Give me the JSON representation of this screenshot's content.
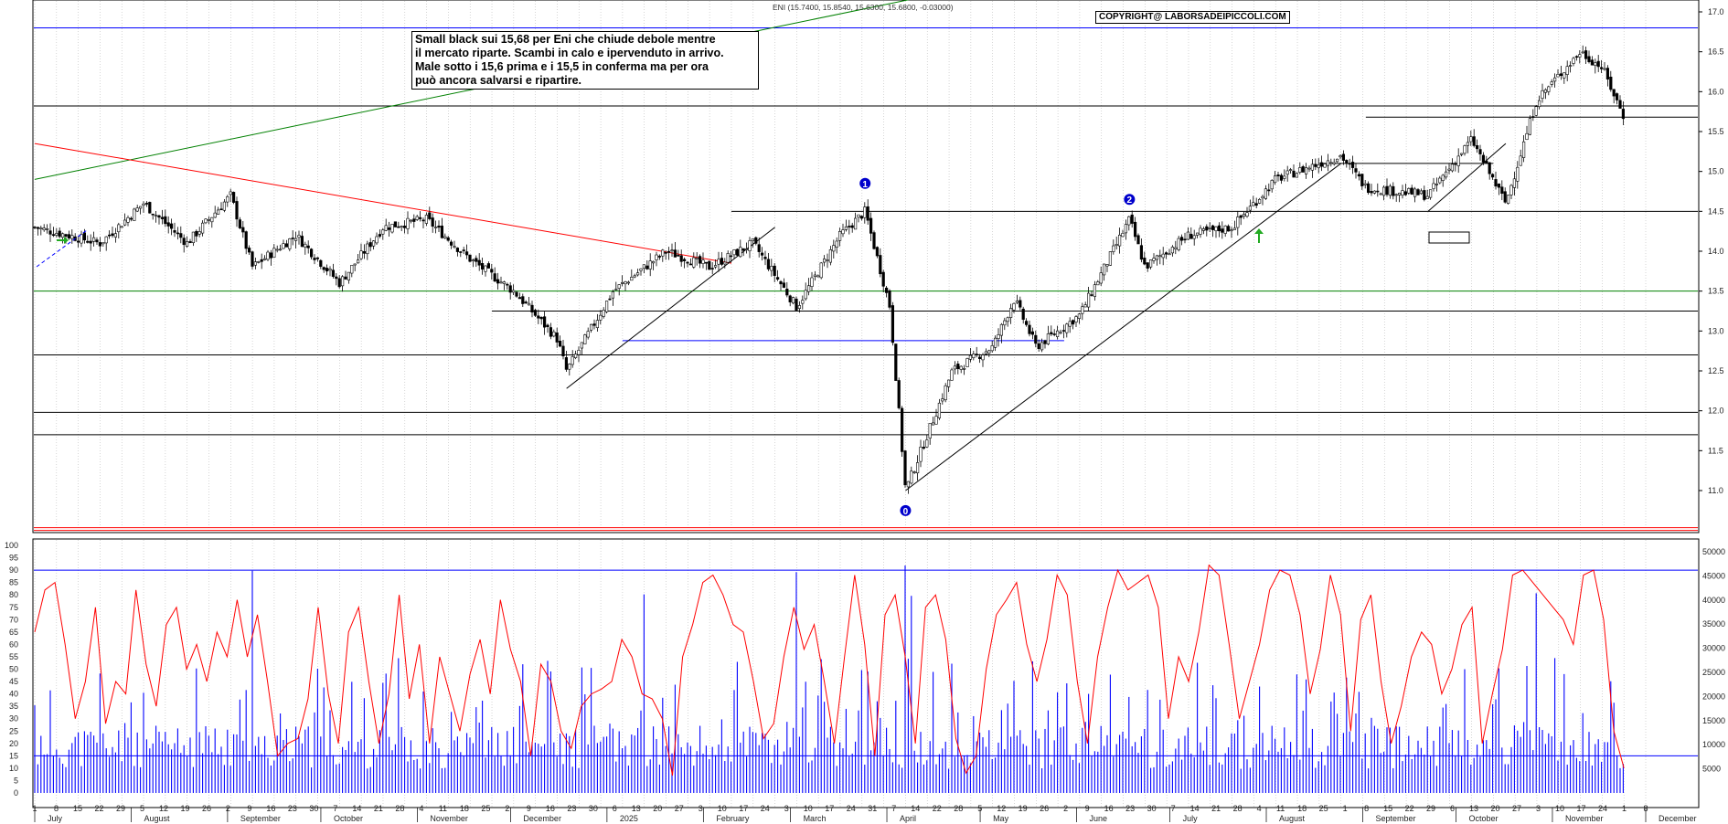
{
  "header": {
    "ticker_readout": "ENI (15.7400, 15.8540, 15.6300, 15.6800, -0.03000)",
    "copyright": "COPYRIGHT@ LABORSADEIPICCOLI.COM"
  },
  "annotation": {
    "lines": [
      "Small black sui 15,68 per Eni che chiude debole mentre",
      "il mercato riparte. Scambi in calo e ipervenduto in arrivo.",
      "Male sotto i 15,6 prima e i 15,5 in conferma ma per ora",
      "può ancora salvarsi e ripartire."
    ]
  },
  "markers": [
    {
      "label": "1",
      "date": "2025-03-25",
      "price": 14.85
    },
    {
      "label": "2",
      "date": "2025-06-18",
      "price": 14.65
    },
    {
      "label": "0",
      "date": "2025-04-07",
      "price": 10.75
    }
  ],
  "colors": {
    "price": "#000000",
    "oscillator": "#ff0000",
    "volume": "#0000ff",
    "trend_up": "#008000",
    "trend_down": "#ff0000",
    "support_green": "#008000",
    "level_blue": "#0000ff"
  },
  "chart_data": [
    {
      "type": "candlestick",
      "title": "",
      "ylim": [
        10.5,
        17.2
      ],
      "y_ticks": [
        "17.0",
        "16.5",
        "16.0",
        "15.5",
        "15.0",
        "14.5",
        "14.0",
        "13.5",
        "13.0",
        "12.5",
        "12.0",
        "11.5",
        "11.0"
      ],
      "grid": "vertical dotted",
      "key_points": [
        {
          "date": "2024-07-01",
          "close": 14.3
        },
        {
          "date": "2024-07-22",
          "close": 14.1
        },
        {
          "date": "2024-08-05",
          "close": 14.6
        },
        {
          "date": "2024-08-19",
          "close": 14.1
        },
        {
          "date": "2024-09-02",
          "close": 14.7
        },
        {
          "date": "2024-09-09",
          "close": 13.8
        },
        {
          "date": "2024-09-23",
          "close": 14.2
        },
        {
          "date": "2024-10-07",
          "close": 13.6
        },
        {
          "date": "2024-10-21",
          "close": 14.3
        },
        {
          "date": "2024-11-04",
          "close": 14.4
        },
        {
          "date": "2024-11-18",
          "close": 13.9
        },
        {
          "date": "2024-12-02",
          "close": 13.5
        },
        {
          "date": "2024-12-16",
          "close": 12.9
        },
        {
          "date": "2024-12-19",
          "close": 12.5
        },
        {
          "date": "2025-01-03",
          "close": 13.5
        },
        {
          "date": "2025-01-20",
          "close": 14.0
        },
        {
          "date": "2025-02-03",
          "close": 13.8
        },
        {
          "date": "2025-02-17",
          "close": 14.1
        },
        {
          "date": "2025-03-03",
          "close": 13.3
        },
        {
          "date": "2025-03-17",
          "close": 14.2
        },
        {
          "date": "2025-03-25",
          "close": 14.5
        },
        {
          "date": "2025-04-02",
          "close": 13.3
        },
        {
          "date": "2025-04-07",
          "close": 11.0
        },
        {
          "date": "2025-04-22",
          "close": 12.5
        },
        {
          "date": "2025-05-05",
          "close": 12.8
        },
        {
          "date": "2025-05-12",
          "close": 13.4
        },
        {
          "date": "2025-05-19",
          "close": 12.8
        },
        {
          "date": "2025-06-02",
          "close": 13.2
        },
        {
          "date": "2025-06-18",
          "close": 14.4
        },
        {
          "date": "2025-06-23",
          "close": 13.8
        },
        {
          "date": "2025-07-07",
          "close": 14.2
        },
        {
          "date": "2025-07-21",
          "close": 14.3
        },
        {
          "date": "2025-08-04",
          "close": 14.9
        },
        {
          "date": "2025-08-25",
          "close": 15.2
        },
        {
          "date": "2025-09-02",
          "close": 14.8
        },
        {
          "date": "2025-09-22",
          "close": 14.7
        },
        {
          "date": "2025-10-06",
          "close": 15.4
        },
        {
          "date": "2025-10-17",
          "close": 14.6
        },
        {
          "date": "2025-10-27",
          "close": 15.9
        },
        {
          "date": "2025-11-10",
          "close": 16.5
        },
        {
          "date": "2025-11-17",
          "close": 16.3
        },
        {
          "date": "2025-11-24",
          "close": 15.68
        }
      ],
      "horizontal_levels": [
        {
          "price": 16.8,
          "color": "blue"
        },
        {
          "price": 15.82,
          "color": "black"
        },
        {
          "price": 15.68,
          "color": "black",
          "from": "2025-09-02"
        },
        {
          "price": 15.1,
          "color": "black",
          "from": "2025-08-18",
          "to": "2025-10-13"
        },
        {
          "price": 14.5,
          "color": "black",
          "from": "2025-02-10"
        },
        {
          "price": 13.5,
          "color": "green"
        },
        {
          "price": 13.25,
          "color": "black",
          "from": "2024-11-25"
        },
        {
          "price": 12.88,
          "color": "blue",
          "from": "2025-01-06",
          "to": "2025-05-28"
        },
        {
          "price": 12.7,
          "color": "black"
        },
        {
          "price": 11.98,
          "color": "black"
        },
        {
          "price": 11.7,
          "color": "black"
        },
        {
          "price": 10.5,
          "color": "red"
        }
      ],
      "trendlines": [
        {
          "color": "green",
          "from": {
            "date": "2024-07-01",
            "price": 14.9
          },
          "to": {
            "date": "2025-04-14",
            "price": 17.2
          }
        },
        {
          "color": "red",
          "from": {
            "date": "2024-07-01",
            "price": 15.35
          },
          "to": {
            "date": "2025-02-10",
            "price": 13.85
          }
        },
        {
          "color": "black",
          "from": {
            "date": "2024-12-19",
            "price": 12.28
          },
          "to": {
            "date": "2025-02-24",
            "price": 14.3
          }
        },
        {
          "color": "black",
          "from": {
            "date": "2025-04-07",
            "price": 11.0
          },
          "to": {
            "date": "2025-08-25",
            "price": 15.1
          }
        },
        {
          "color": "black",
          "from": {
            "date": "2025-09-22",
            "price": 14.5
          },
          "to": {
            "date": "2025-10-17",
            "price": 15.35
          }
        }
      ]
    },
    {
      "type": "line",
      "series": [
        {
          "values_pct": [
            65,
            82,
            85,
            60,
            30,
            45,
            75,
            28,
            45,
            40,
            82,
            52,
            35,
            68,
            75,
            50,
            60,
            45,
            65,
            55,
            78,
            55,
            72,
            45,
            15,
            20,
            22,
            38,
            75,
            40,
            20,
            65,
            75,
            45,
            20,
            40,
            80,
            38,
            60,
            20,
            55,
            40,
            25,
            48,
            62,
            40,
            78,
            58,
            45,
            15,
            52,
            45,
            25,
            18,
            35,
            40,
            42,
            45,
            62,
            55,
            40,
            38,
            30,
            7,
            55,
            68,
            85,
            88,
            80,
            68,
            65,
            45,
            22,
            28,
            55,
            75,
            58,
            68,
            45,
            20,
            55,
            88,
            60,
            15,
            72,
            80,
            55,
            20,
            75,
            80,
            62,
            22,
            8,
            15,
            50,
            72,
            78,
            85,
            60,
            45,
            62,
            88,
            80,
            45,
            20,
            55,
            75,
            90,
            82,
            85,
            88,
            75,
            30,
            55,
            45,
            65,
            92,
            88,
            60,
            30,
            45,
            60,
            82,
            90,
            88,
            72,
            40,
            58,
            88,
            72,
            25,
            70,
            80,
            45,
            20,
            35,
            55,
            65,
            60,
            40,
            50,
            68,
            75,
            20,
            40,
            58,
            88,
            90,
            85,
            80,
            75,
            70,
            60,
            88,
            90,
            70,
            25,
            10
          ]
        }
      ],
      "ylim": [
        0,
        100
      ],
      "y_ticks": [
        "100",
        "95",
        "90",
        "85",
        "80",
        "75",
        "70",
        "65",
        "60",
        "55",
        "50",
        "45",
        "40",
        "35",
        "30",
        "25",
        "20",
        "15",
        "10",
        "5",
        "0"
      ],
      "horizontal_levels": [
        90,
        15
      ]
    },
    {
      "type": "bar",
      "ylim": [
        0,
        50000
      ],
      "y_ticks": [
        "50000",
        "45000",
        "40000",
        "35000",
        "30000",
        "25000",
        "20000",
        "15000",
        "10000",
        "5000"
      ],
      "x_tick_labels": [
        "1",
        "8",
        "15",
        "22",
        "29",
        "5",
        "12",
        "19",
        "26",
        "2",
        "9",
        "16",
        "23",
        "30",
        "7",
        "14",
        "21",
        "28",
        "4",
        "11",
        "18",
        "25",
        "2",
        "9",
        "16",
        "23",
        "30",
        "6",
        "13",
        "20",
        "27",
        "3",
        "10",
        "17",
        "24",
        "3",
        "10",
        "17",
        "24",
        "31",
        "7",
        "14",
        "22",
        "28",
        "5",
        "12",
        "19",
        "26",
        "2",
        "9",
        "16",
        "23",
        "30",
        "7",
        "14",
        "21",
        "28",
        "4",
        "11",
        "18",
        "25",
        "1",
        "8",
        "15",
        "22",
        "29",
        "6",
        "13",
        "20",
        "27",
        "3",
        "10",
        "17",
        "24",
        "1",
        "8"
      ],
      "x_month_labels": [
        "July",
        "August",
        "September",
        "October",
        "November",
        "December",
        "2025",
        "February",
        "March",
        "April",
        "May",
        "June",
        "July",
        "August",
        "September",
        "October",
        "November",
        "December"
      ],
      "high_volume_dates": [
        "2025-04-07",
        "2025-04-09",
        "2025-03-03",
        "2025-10-27",
        "2025-01-13",
        "2024-09-09"
      ]
    }
  ]
}
